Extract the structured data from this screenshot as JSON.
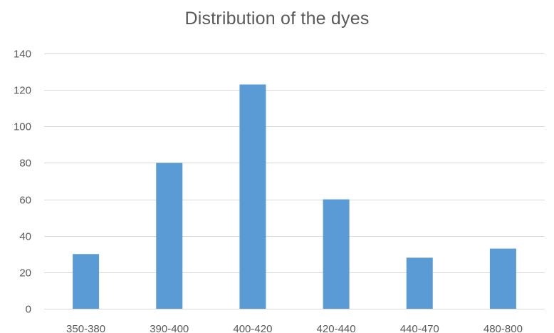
{
  "chart_data": {
    "type": "bar",
    "title": "Distribution of the dyes",
    "xlabel": "",
    "ylabel": "",
    "categories": [
      "350-380",
      "390-400",
      "400-420",
      "420-440",
      "440-470",
      "480-800"
    ],
    "values": [
      30,
      80,
      123,
      60,
      28,
      33
    ],
    "ylim": [
      0,
      140
    ],
    "ytick_step": 20,
    "grid": true,
    "legend": "none",
    "bar_color": "#5b9bd5"
  }
}
